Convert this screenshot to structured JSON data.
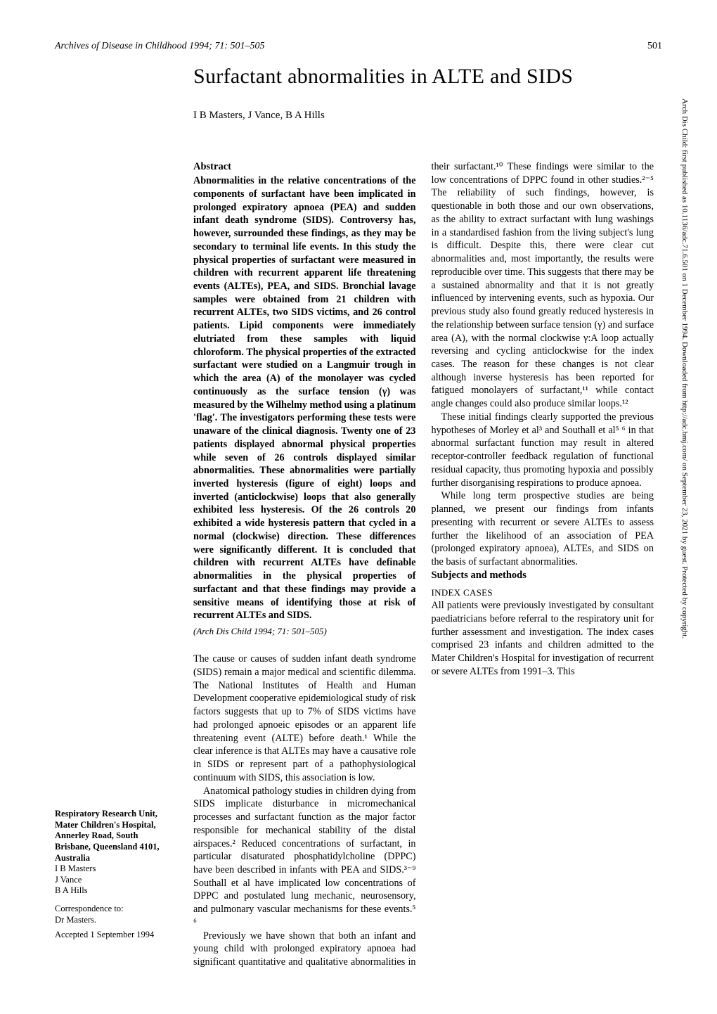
{
  "header": {
    "journal": "Archives of Disease in Childhood 1994; 71: 501–505",
    "page_number": "501"
  },
  "title": "Surfactant abnormalities in ALTE and SIDS",
  "authors": "I B Masters, J Vance, B A Hills",
  "abstract": {
    "heading": "Abstract",
    "body": "Abnormalities in the relative concentrations of the components of surfactant have been implicated in prolonged expiratory apnoea (PEA) and sudden infant death syndrome (SIDS). Controversy has, however, surrounded these findings, as they may be secondary to terminal life events. In this study the physical properties of surfactant were measured in children with recurrent apparent life threatening events (ALTEs), PEA, and SIDS. Bronchial lavage samples were obtained from 21 children with recurrent ALTEs, two SIDS victims, and 26 control patients. Lipid components were immediately elutriated from these samples with liquid chloroform. The physical properties of the extracted surfactant were studied on a Langmuir trough in which the area (A) of the monolayer was cycled continuously as the surface tension (γ) was measured by the Wilhelmy method using a platinum 'flag'. The investigators performing these tests were unaware of the clinical diagnosis. Twenty one of 23 patients displayed abnormal physical properties while seven of 26 controls displayed similar abnormalities. These abnormalities were partially inverted hysteresis (figure of eight) loops and inverted (anticlockwise) loops that also generally exhibited less hysteresis. Of the 26 controls 20 exhibited a wide hysteresis pattern that cycled in a normal (clockwise) direction. These differences were significantly different. It is concluded that children with recurrent ALTEs have definable abnormalities in the physical properties of surfactant and that these findings may provide a sensitive means of identifying those at risk of recurrent ALTEs and SIDS.",
    "citation": "(Arch Dis Child 1994; 71: 501–505)"
  },
  "intro": {
    "p1": "The cause or causes of sudden infant death syndrome (SIDS) remain a major medical and scientific dilemma. The National Institutes of Health and Human Development cooperative epidemiological study of risk factors suggests that up to 7% of SIDS victims have had prolonged apnoeic episodes or an apparent life threatening event (ALTE) before death.¹ While the clear inference is that ALTEs may have a causative role in SIDS or represent part of a pathophysiological continuum with SIDS, this association is low.",
    "p2": "Anatomical pathology studies in children dying from SIDS implicate disturbance in micromechanical processes and surfactant function as the major factor responsible for mechanical stability of the distal airspaces.² Reduced concentrations of surfactant, in particular disaturated phosphatidylcholine (DPPC) have been described in infants with PEA and SIDS.³⁻⁹ Southall et al have implicated low concentrations of DPPC and postulated lung mechanic, neurosensory, and pulmonary vascular mechanisms for these events.⁵ ⁶",
    "p3": "Previously we have shown that both an infant and young child with prolonged expiratory apnoea had significant quantitative and qualitative abnormalities in their surfactant.¹⁰ These findings were similar to the low concentrations of DPPC found in other studies.²⁻⁵ The reliability of such findings, however, is questionable in both those and our own observations, as the ability to extract surfactant with lung washings in a standardised fashion from the living subject's lung is difficult. Despite this, there were clear cut abnormalities and, most importantly, the results were reproducible over time. This suggests that there may be a sustained abnormality and that it is not greatly influenced by intervening events, such as hypoxia. Our previous study also found greatly reduced hysteresis in the relationship between surface tension (γ) and surface area (A), with the normal clockwise γ:A loop actually reversing and cycling anticlockwise for the index cases. The reason for these changes is not clear although inverse hysteresis has been reported for fatigued monolayers of surfactant,¹¹ while contact angle changes could also produce similar loops.¹²",
    "p4": "These initial findings clearly supported the previous hypotheses of Morley et al³ and Southall et al⁵ ⁶ in that abnormal surfactant function may result in altered receptor-controller feedback regulation of functional residual capacity, thus promoting hypoxia and possibly further disorganising respirations to produce apnoea.",
    "p5": "While long term prospective studies are being planned, we present our findings from infants presenting with recurrent or severe ALTEs to assess further the likelihood of an association of PEA (prolonged expiratory apnoea), ALTEs, and SIDS on the basis of surfactant abnormalities."
  },
  "methods": {
    "heading": "Subjects and methods",
    "sub1": "INDEX CASES",
    "p1": "All patients were previously investigated by consultant paediatricians before referral to the respiratory unit for further assessment and investigation. The index cases comprised 23 infants and children admitted to the Mater Children's Hospital for investigation of recurrent or severe ALTEs from 1991–3. This"
  },
  "affiliation": {
    "institution": "Respiratory Research Unit, Mater Children's Hospital, Annerley Road, South Brisbane, Queensland 4101, Australia",
    "authors": [
      "I B Masters",
      "J Vance",
      "B A Hills"
    ],
    "correspondence_label": "Correspondence to:",
    "correspondence_to": "Dr Masters.",
    "accepted": "Accepted 1 September 1994"
  },
  "side_note": "Arch Dis Child: first published as 10.1136/adc.71.6.501 on 1 December 1994. Downloaded from http://adc.bmj.com/ on September 23, 2021 by guest. Protected by copyright."
}
